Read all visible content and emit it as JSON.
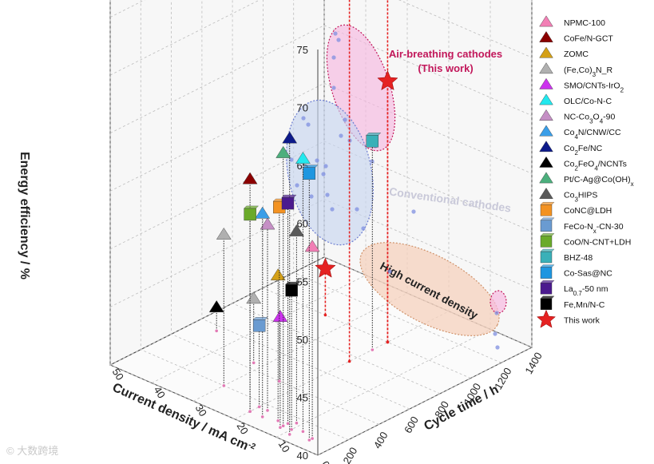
{
  "chart_data": {
    "type": "scatter3d",
    "title": "",
    "axes": {
      "x": {
        "label": "Current density / mA cm",
        "superscript": "-2",
        "range": [
          0,
          50
        ],
        "ticks": [
          "0",
          "10",
          "20",
          "30",
          "40",
          "50"
        ]
      },
      "y": {
        "label": "Cycle time / h",
        "range": [
          0,
          1400
        ],
        "ticks": [
          "0",
          "200",
          "400",
          "600",
          "800",
          "1000",
          "1200",
          "1400"
        ]
      },
      "z": {
        "label": "Energy efficiency / %",
        "range": [
          40,
          75
        ],
        "ticks": [
          "40",
          "45",
          "50",
          "55",
          "60",
          "65",
          "70",
          "75"
        ]
      }
    },
    "grid": true,
    "legend_position": "right",
    "series": [
      {
        "name": "NPMC-100",
        "label_html": "NPMC-100",
        "color": "#f27fb5",
        "marker": "triangle",
        "points": [
          [
            5,
            100,
            56.5
          ]
        ]
      },
      {
        "name": "CoFe/N-GCT",
        "label_html": "CoFe/N-GCT",
        "color": "#8b0000",
        "marker": "triangle",
        "points": [
          [
            20,
            100,
            60.0
          ]
        ]
      },
      {
        "name": "ZOMC",
        "label_html": "ZOMC",
        "color": "#d4a017",
        "marker": "triangle",
        "points": [
          [
            14,
            120,
            52.5
          ]
        ]
      },
      {
        "name": "(Fe,Co)3N_R",
        "label_html": "(Fe,Co)<tspan baseline-shift='sub' font-size='8'>3</tspan>N_R",
        "color": "#b0b0b0",
        "marker": "triangle",
        "points": [
          [
            30,
            200,
            53.0
          ],
          [
            32,
            450,
            45.5
          ]
        ]
      },
      {
        "name": "SMO/CNTs-IrO2",
        "label_html": "SMO/CNTs-IrO<tspan baseline-shift='sub' font-size='8'>2</tspan>",
        "color": "#cc33ee",
        "marker": "triangle",
        "points": [
          [
            12,
            80,
            49.5
          ]
        ]
      },
      {
        "name": "OLC/Co-N-C",
        "label_html": "OLC/Co-N-C",
        "color": "#22e8ee",
        "marker": "triangle",
        "points": [
          [
            8,
            120,
            63.5
          ]
        ]
      },
      {
        "name": "NC-Co3O4-90",
        "label_html": "NC-Co<tspan baseline-shift='sub' font-size='8'>3</tspan>O<tspan baseline-shift='sub' font-size='8'>4</tspan>-90",
        "color": "#c58fc5",
        "marker": "triangle",
        "points": [
          [
            18,
            160,
            56.0
          ]
        ]
      },
      {
        "name": "Co4N/CNW/CC",
        "label_html": "Co<tspan baseline-shift='sub' font-size='8'>4</tspan>N/CNW/CC",
        "color": "#3a9ee8",
        "marker": "triangle",
        "points": [
          [
            17,
            100,
            57.5
          ]
        ]
      },
      {
        "name": "Co2Fe/NC",
        "label_html": "Co<tspan baseline-shift='sub' font-size='8'>2</tspan>Fe/NC",
        "color": "#0d1a8a",
        "marker": "triangle",
        "points": [
          [
            9,
            60,
            65.5
          ]
        ]
      },
      {
        "name": "Co2FeO4/NCNTs",
        "label_html": "Co<tspan baseline-shift='sub' font-size='8'>2</tspan>FeO<tspan baseline-shift='sub' font-size='8'>4</tspan>/NCNTs",
        "color": "#000000",
        "marker": "triangle",
        "points": [
          [
            45,
            560,
            42.0
          ]
        ]
      },
      {
        "name": "Pt/C-Ag@Co(OH)x",
        "label_html": "Pt/C-Ag@Co(OH)<tspan baseline-shift='sub' font-size='8'>x</tspan>",
        "color": "#4caf7d",
        "marker": "triangle",
        "points": [
          [
            12,
            100,
            63.5
          ]
        ]
      },
      {
        "name": "Co3HIPS",
        "label_html": "Co<tspan baseline-shift='sub' font-size='8'>3</tspan>HIPS",
        "color": "#5a5a5a",
        "marker": "triangle",
        "points": [
          [
            11,
            160,
            56.5
          ]
        ]
      },
      {
        "name": "CoNC@LDH",
        "label_html": "CoNC@LDH",
        "color": "#f39221",
        "marker": "cube",
        "points": [
          [
            24,
            400,
            55.0
          ]
        ]
      },
      {
        "name": "FeCo-Nx-CN-30",
        "label_html": "FeCo-N<tspan baseline-shift='sub' font-size='8'>x</tspan>-CN-30",
        "color": "#6a9bd1",
        "marker": "cube",
        "points": [
          [
            20,
            160,
            47.0
          ]
        ]
      },
      {
        "name": "CoO/N-CNT+LDH",
        "label_html": "CoO/N-CNT+LDH",
        "color": "#6aaa2a",
        "marker": "cube",
        "points": [
          [
            20,
            100,
            57.0
          ]
        ]
      },
      {
        "name": "BHZ-48",
        "label_html": "BHZ-48",
        "color": "#3ab0b8",
        "marker": "cube",
        "points": [
          [
            20,
            900,
            58.0
          ]
        ]
      },
      {
        "name": "Co-Sas@NC",
        "label_html": "Co-Sas@NC",
        "color": "#1e96e0",
        "marker": "cube",
        "points": [
          [
            5,
            80,
            63.0
          ]
        ]
      },
      {
        "name": "La0.7-50 nm",
        "label_html": "La<tspan baseline-shift='sub' font-size='8'>0.7</tspan>-50 nm",
        "color": "#4b1a8e",
        "marker": "cube",
        "points": [
          [
            12,
            130,
            59.0
          ]
        ]
      },
      {
        "name": "Fe,Mn/N-C",
        "label_html": "Fe,Mn/N-C",
        "color": "#000000",
        "marker": "cube",
        "points": [
          [
            10,
            100,
            52.0
          ]
        ]
      },
      {
        "name": "This work",
        "label_html": "This work",
        "color": "#e52222",
        "marker": "star",
        "points": [
          [
            20,
            750,
            74.0
          ],
          [
            20,
            1000,
            70.5
          ],
          [
            20,
            1000,
            62.5
          ],
          [
            35,
            1000,
            44.0
          ]
        ]
      }
    ],
    "annotations": [
      {
        "text": "Air-breathing cathodes",
        "sub": "(This work)",
        "color": "#c2185b"
      },
      {
        "text": "Conventional cathodes",
        "color": "#c9c9d9"
      },
      {
        "text": "High current density",
        "color": "#222222"
      }
    ]
  },
  "watermark": "© 大数跨境"
}
